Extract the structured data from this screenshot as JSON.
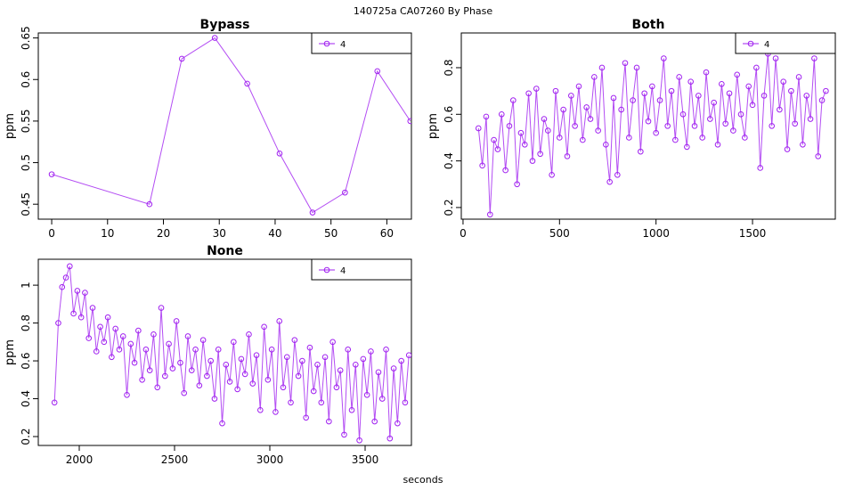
{
  "title": "140725a    CA07260   By Phase",
  "xlabel": "seconds",
  "chart_data": [
    {
      "type": "line",
      "title": "Bypass",
      "ylabel": "ppm",
      "x": [
        0,
        17.5,
        23.3,
        29.2,
        35,
        40.8,
        46.7,
        52.5,
        58.3,
        64.2
      ],
      "series": [
        {
          "name": "4",
          "color": "#a020f0",
          "values": [
            0.486,
            0.45,
            0.625,
            0.65,
            0.595,
            0.511,
            0.44,
            0.464,
            0.61,
            0.55
          ]
        }
      ],
      "xlim": [
        -2.4,
        64.4
      ],
      "xticks": [
        0,
        10,
        20,
        30,
        40,
        50,
        60
      ],
      "ylim": [
        0.432,
        0.656
      ],
      "yticks": [
        0.45,
        0.5,
        0.55,
        0.6,
        0.65
      ],
      "legend": "top-right"
    },
    {
      "type": "line",
      "title": "Both",
      "ylabel": "ppm",
      "x": [
        80,
        100,
        120,
        140,
        160,
        180,
        200,
        220,
        240,
        260,
        280,
        300,
        320,
        340,
        360,
        380,
        400,
        420,
        440,
        460,
        480,
        500,
        520,
        540,
        560,
        580,
        600,
        620,
        640,
        660,
        680,
        700,
        720,
        740,
        760,
        780,
        800,
        820,
        840,
        860,
        880,
        900,
        920,
        940,
        960,
        980,
        1000,
        1020,
        1040,
        1060,
        1080,
        1100,
        1120,
        1140,
        1160,
        1180,
        1200,
        1220,
        1240,
        1260,
        1280,
        1300,
        1320,
        1340,
        1360,
        1380,
        1400,
        1420,
        1440,
        1460,
        1480,
        1500,
        1520,
        1540,
        1560,
        1580,
        1600,
        1620,
        1640,
        1660,
        1680,
        1700,
        1720,
        1740,
        1760,
        1780,
        1800,
        1820,
        1840,
        1860,
        1880
      ],
      "series": [
        {
          "name": "4",
          "color": "#a020f0",
          "values": [
            0.54,
            0.38,
            0.59,
            0.17,
            0.49,
            0.45,
            0.6,
            0.36,
            0.55,
            0.66,
            0.3,
            0.52,
            0.47,
            0.69,
            0.4,
            0.71,
            0.43,
            0.58,
            0.53,
            0.34,
            0.7,
            0.5,
            0.62,
            0.42,
            0.68,
            0.55,
            0.72,
            0.49,
            0.63,
            0.58,
            0.76,
            0.53,
            0.8,
            0.47,
            0.31,
            0.67,
            0.34,
            0.62,
            0.82,
            0.5,
            0.66,
            0.8,
            0.44,
            0.69,
            0.57,
            0.72,
            0.52,
            0.66,
            0.84,
            0.55,
            0.7,
            0.49,
            0.76,
            0.6,
            0.46,
            0.74,
            0.55,
            0.68,
            0.5,
            0.78,
            0.58,
            0.65,
            0.47,
            0.73,
            0.56,
            0.69,
            0.53,
            0.77,
            0.6,
            0.5,
            0.72,
            0.64,
            0.8,
            0.37,
            0.68,
            0.86,
            0.55,
            0.84,
            0.62,
            0.74,
            0.45,
            0.7,
            0.56,
            0.76,
            0.47,
            0.68,
            0.58,
            0.84,
            0.42,
            0.66,
            0.7
          ]
        }
      ],
      "xlim": [
        -9,
        1929
      ],
      "xticks": [
        0,
        500,
        1000,
        1500
      ],
      "ylim": [
        0.15,
        0.949
      ],
      "yticks": [
        0.2,
        0.4,
        0.6,
        0.8
      ],
      "legend": "top-right"
    },
    {
      "type": "line",
      "title": "None",
      "ylabel": "ppm",
      "x": [
        1870,
        1890,
        1910,
        1930,
        1950,
        1970,
        1990,
        2010,
        2030,
        2050,
        2070,
        2090,
        2110,
        2130,
        2150,
        2170,
        2190,
        2210,
        2230,
        2250,
        2270,
        2290,
        2310,
        2330,
        2350,
        2370,
        2390,
        2410,
        2430,
        2450,
        2470,
        2490,
        2510,
        2530,
        2550,
        2570,
        2590,
        2610,
        2630,
        2650,
        2670,
        2690,
        2710,
        2730,
        2750,
        2770,
        2790,
        2810,
        2830,
        2850,
        2870,
        2890,
        2910,
        2930,
        2950,
        2970,
        2990,
        3010,
        3030,
        3050,
        3070,
        3090,
        3110,
        3130,
        3150,
        3170,
        3190,
        3210,
        3230,
        3250,
        3270,
        3290,
        3310,
        3330,
        3350,
        3370,
        3390,
        3410,
        3430,
        3450,
        3470,
        3490,
        3510,
        3530,
        3550,
        3570,
        3590,
        3610,
        3630,
        3650,
        3670,
        3690,
        3710,
        3730
      ],
      "series": [
        {
          "name": "4",
          "color": "#a020f0",
          "values": [
            0.38,
            0.8,
            0.99,
            1.04,
            1.1,
            0.85,
            0.97,
            0.83,
            0.96,
            0.72,
            0.88,
            0.65,
            0.78,
            0.7,
            0.83,
            0.62,
            0.77,
            0.66,
            0.73,
            0.42,
            0.69,
            0.59,
            0.76,
            0.5,
            0.66,
            0.55,
            0.74,
            0.46,
            0.88,
            0.52,
            0.69,
            0.56,
            0.81,
            0.59,
            0.43,
            0.73,
            0.55,
            0.66,
            0.47,
            0.71,
            0.52,
            0.6,
            0.4,
            0.66,
            0.27,
            0.58,
            0.49,
            0.7,
            0.45,
            0.61,
            0.53,
            0.74,
            0.48,
            0.63,
            0.34,
            0.78,
            0.5,
            0.66,
            0.33,
            0.81,
            0.46,
            0.62,
            0.38,
            0.71,
            0.52,
            0.6,
            0.3,
            0.67,
            0.44,
            0.58,
            0.38,
            0.62,
            0.28,
            0.7,
            0.46,
            0.55,
            0.21,
            0.66,
            0.34,
            0.58,
            0.18,
            0.61,
            0.42,
            0.65,
            0.28,
            0.54,
            0.4,
            0.66,
            0.19,
            0.56,
            0.27,
            0.6,
            0.38,
            0.63
          ]
        }
      ],
      "xlim": [
        1785,
        3743
      ],
      "xticks": [
        2000,
        2500,
        3000,
        3500
      ],
      "ylim": [
        0.153,
        1.137
      ],
      "yticks": [
        0.2,
        0.4,
        0.6,
        0.8,
        1.0
      ],
      "legend": "top-right"
    }
  ]
}
